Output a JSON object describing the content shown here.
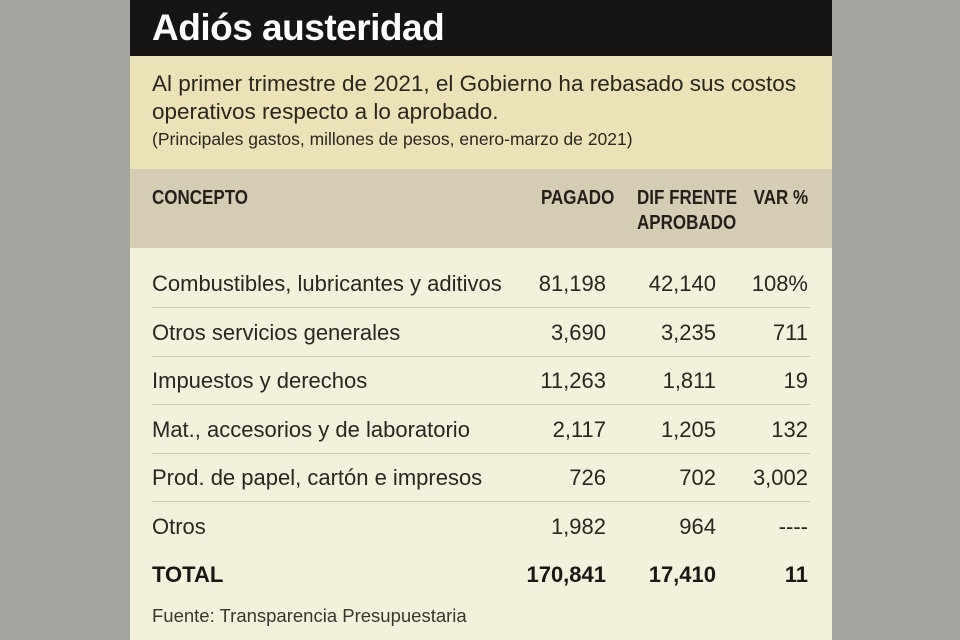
{
  "title": "Adiós austeridad",
  "subtitle": "Al primer trimestre de 2021, el Gobierno ha rebasado sus costos operativos respecto a lo aprobado.",
  "units": "(Principales gastos, millones de pesos, enero-marzo de 2021)",
  "source": "Fuente: Transparencia Presupuestaria",
  "colors": {
    "title_bar": "#161513",
    "subtitle_bg": "#ebe3b7",
    "header_bg": "#d4cdb4",
    "body_bg": "#f3f0dc",
    "page_bg": "#a3a69f"
  },
  "chart_data": {
    "type": "table",
    "columns": {
      "concepto": "CONCEPTO",
      "pagado": "PAGADO",
      "dif_line1": "DIF FRENTE",
      "dif_line2": "APROBADO",
      "var": "VAR %"
    },
    "rows": [
      {
        "concepto": "Combustibles, lubricantes y aditivos",
        "pagado": "81,198",
        "dif": "42,140",
        "var": "108%"
      },
      {
        "concepto": "Otros servicios generales",
        "pagado": "3,690",
        "dif": "3,235",
        "var": "711"
      },
      {
        "concepto": "Impuestos y derechos",
        "pagado": "11,263",
        "dif": "1,811",
        "var": "19"
      },
      {
        "concepto": "Mat., accesorios y de laboratorio",
        "pagado": "2,117",
        "dif": "1,205",
        "var": "132"
      },
      {
        "concepto": "Prod. de papel, cartón e impresos",
        "pagado": "726",
        "dif": "702",
        "var": "3,002"
      },
      {
        "concepto": "Otros",
        "pagado": "1,982",
        "dif": "964",
        "var": "----"
      }
    ],
    "total": {
      "concepto": "TOTAL",
      "pagado": "170,841",
      "dif": "17,410",
      "var": "11"
    }
  }
}
